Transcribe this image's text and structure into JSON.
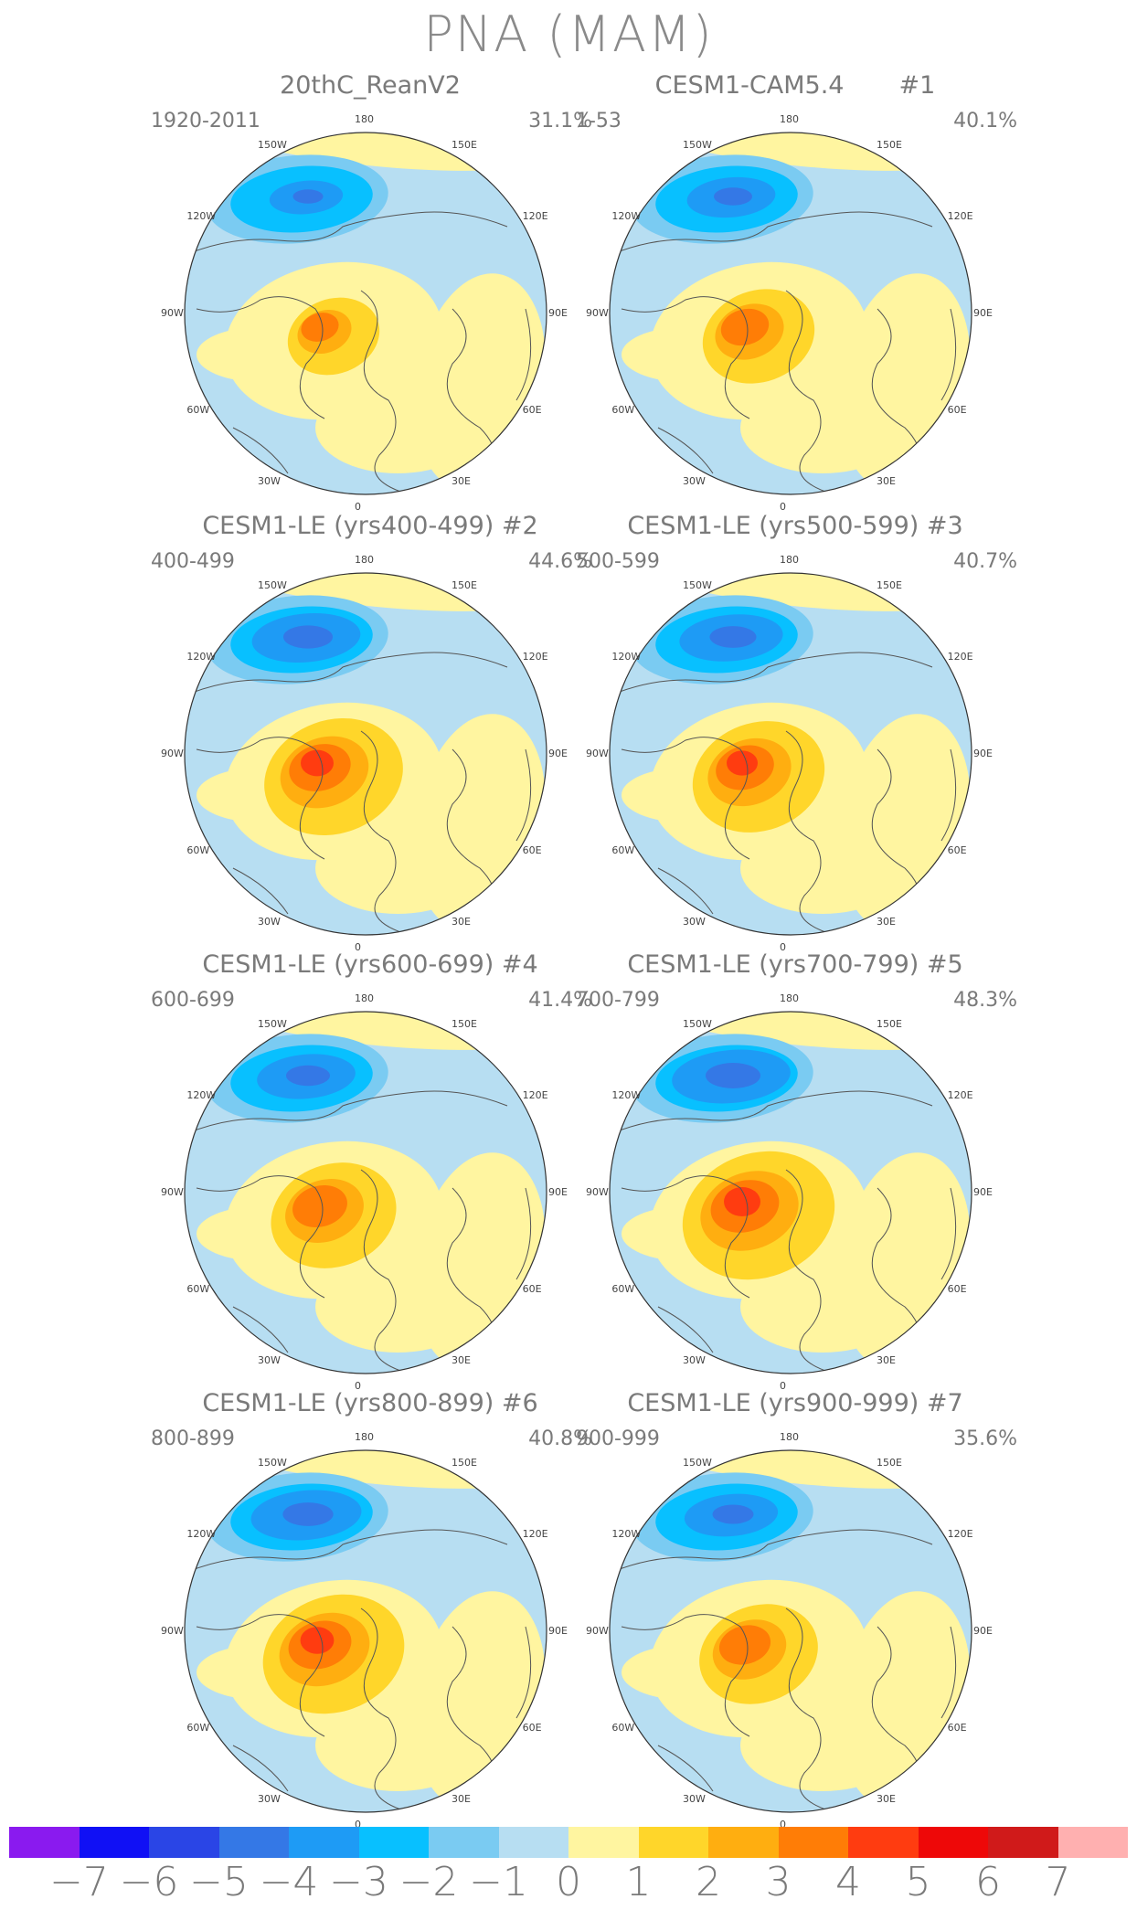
{
  "figure": {
    "title": "PNA (MAM)"
  },
  "panels": [
    {
      "title": "20thC_ReanV2",
      "years": "1920-2011",
      "pct": "31.1%",
      "intensity": 0.55
    },
    {
      "title": "CESM1-CAM5.4       #1",
      "years": "1-53",
      "pct": "40.1%",
      "intensity": 0.7
    },
    {
      "title": "CESM1-LE (yrs400-499) #2",
      "years": "400-499",
      "pct": "44.6%",
      "intensity": 0.9
    },
    {
      "title": "CESM1-LE (yrs500-599) #3",
      "years": "500-599",
      "pct": "40.7%",
      "intensity": 0.85
    },
    {
      "title": "CESM1-LE (yrs600-699) #4",
      "years": "600-699",
      "pct": "41.4%",
      "intensity": 0.8
    },
    {
      "title": "CESM1-LE (yrs700-799) #5",
      "years": "700-799",
      "pct": "48.3%",
      "intensity": 1.0
    },
    {
      "title": "CESM1-LE (yrs800-899) #6",
      "years": "800-899",
      "pct": "40.8%",
      "intensity": 0.92
    },
    {
      "title": "CESM1-LE (yrs900-999) #7",
      "years": "900-999",
      "pct": "35.6%",
      "intensity": 0.75
    }
  ],
  "lon_labels": [
    "180",
    "150E",
    "120E",
    "90E",
    "60E",
    "30E",
    "0",
    "30W",
    "60W",
    "90W",
    "120W",
    "150W"
  ],
  "colorbar": {
    "colors": [
      "#8a1aef",
      "#1010f5",
      "#2a45e6",
      "#3478e6",
      "#1e9bf5",
      "#08c0ff",
      "#7acbf2",
      "#b7def2",
      "#fff5a0",
      "#ffd62a",
      "#ffae10",
      "#ff7d06",
      "#ff3c10",
      "#ee0808",
      "#d01a1a",
      "#ffb0b0"
    ],
    "labels": [
      "−7",
      "−6",
      "−5",
      "−4",
      "−3",
      "−2",
      "−1",
      "0",
      "1",
      "2",
      "3",
      "4",
      "5",
      "6",
      "7"
    ]
  }
}
